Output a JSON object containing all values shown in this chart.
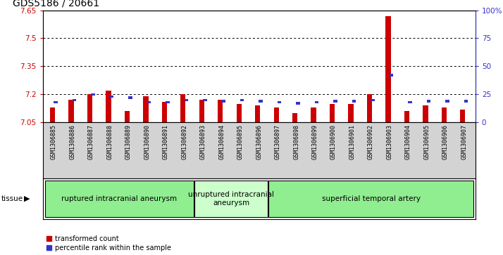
{
  "title": "GDS5186 / 20661",
  "samples": [
    "GSM1306885",
    "GSM1306886",
    "GSM1306887",
    "GSM1306888",
    "GSM1306889",
    "GSM1306890",
    "GSM1306891",
    "GSM1306892",
    "GSM1306893",
    "GSM1306894",
    "GSM1306895",
    "GSM1306896",
    "GSM1306897",
    "GSM1306898",
    "GSM1306899",
    "GSM1306900",
    "GSM1306901",
    "GSM1306902",
    "GSM1306903",
    "GSM1306904",
    "GSM1306905",
    "GSM1306906",
    "GSM1306907"
  ],
  "red_values": [
    7.13,
    7.17,
    7.2,
    7.22,
    7.11,
    7.19,
    7.16,
    7.2,
    7.17,
    7.17,
    7.15,
    7.14,
    7.13,
    7.1,
    7.13,
    7.15,
    7.15,
    7.2,
    7.62,
    7.11,
    7.14,
    7.13,
    7.12
  ],
  "blue_values": [
    18,
    20,
    25,
    23,
    22,
    18,
    18,
    20,
    20,
    19,
    20,
    19,
    18,
    17,
    18,
    19,
    19,
    20,
    42,
    18,
    19,
    19,
    19
  ],
  "ylim_left": [
    7.05,
    7.65
  ],
  "ylim_right": [
    0,
    100
  ],
  "yticks_left": [
    7.05,
    7.2,
    7.35,
    7.5,
    7.65
  ],
  "yticks_right": [
    0,
    25,
    50,
    75,
    100
  ],
  "ytick_labels_left": [
    "7.05",
    "7.2",
    "7.35",
    "7.5",
    "7.65"
  ],
  "ytick_labels_right": [
    "0",
    "25",
    "50",
    "75",
    "100%"
  ],
  "groups": [
    {
      "label": "ruptured intracranial aneurysm",
      "start": 0,
      "end": 8,
      "color": "#90EE90"
    },
    {
      "label": "unruptured intracranial\naneurysm",
      "start": 8,
      "end": 12,
      "color": "#ccffcc"
    },
    {
      "label": "superficial temporal artery",
      "start": 12,
      "end": 23,
      "color": "#90EE90"
    }
  ],
  "tissue_label": "tissue",
  "legend_red": "transformed count",
  "legend_blue": "percentile rank within the sample",
  "bar_color_red": "#cc0000",
  "bar_color_blue": "#3333cc",
  "plot_bg": "#ffffff",
  "xlabelarea_bg": "#d3d3d3",
  "left_axis_color": "#cc0000",
  "right_axis_color": "#3333cc",
  "title_fontsize": 10,
  "tick_fontsize": 7.5,
  "xlabel_fontsize": 6,
  "group_fontsize": 7.5,
  "legend_fontsize": 7
}
